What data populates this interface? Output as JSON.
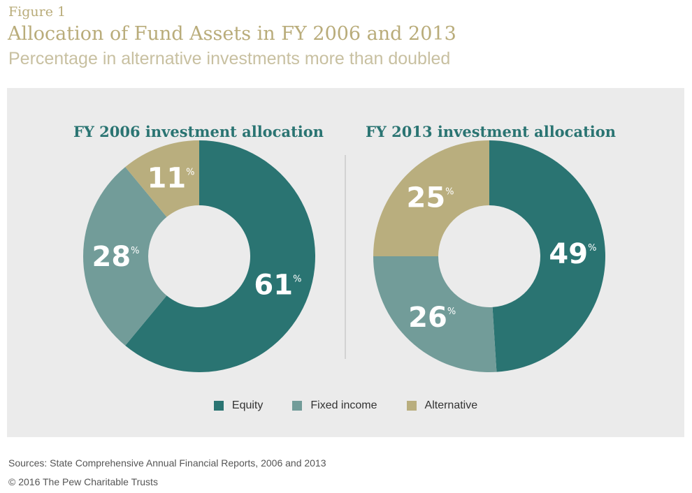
{
  "figure_label": "Figure 1",
  "title": "Allocation of Fund Assets in FY 2006 and 2013",
  "subtitle": "Percentage in alternative investments more than doubled",
  "colors": {
    "equity": "#2a7472",
    "fixed_income": "#729c99",
    "alternative": "#b9ae7e",
    "panel_bg": "#ebebeb"
  },
  "legend": [
    {
      "label": "Equity",
      "key": "equity"
    },
    {
      "label": "Fixed income",
      "key": "fixed_income"
    },
    {
      "label": "Alternative",
      "key": "alternative"
    }
  ],
  "chart_data": [
    {
      "type": "pie",
      "title": "FY 2006 investment allocation",
      "slices": [
        {
          "label": "Equity",
          "value": 61,
          "key": "equity"
        },
        {
          "label": "Fixed income",
          "value": 28,
          "key": "fixed_income"
        },
        {
          "label": "Alternative",
          "value": 11,
          "key": "alternative"
        }
      ]
    },
    {
      "type": "pie",
      "title": "FY 2013 investment allocation",
      "slices": [
        {
          "label": "Equity",
          "value": 49,
          "key": "equity"
        },
        {
          "label": "Fixed income",
          "value": 26,
          "key": "fixed_income"
        },
        {
          "label": "Alternative",
          "value": 25,
          "key": "alternative"
        }
      ]
    }
  ],
  "percent_sign": "%",
  "sources": "Sources: State Comprehensive Annual Financial Reports, 2006 and 2013",
  "copyright": "© 2016 The Pew Charitable Trusts"
}
